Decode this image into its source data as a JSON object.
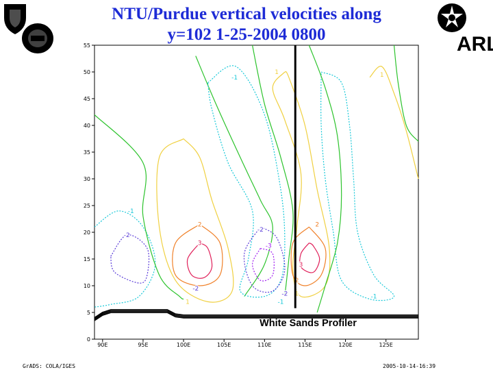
{
  "header": {
    "title_line1": "NTU/Purdue vertical velocities along",
    "title_line2": "y=102 1-25-2004 0800",
    "title_color": "#1d2bd6",
    "logos": [
      "shield-emblem",
      "round-seal",
      "star-seal",
      "ARL"
    ]
  },
  "footer": {
    "left": "GrADS: COLA/IGES",
    "right": "2005-10-14-16:39"
  },
  "chart_data": {
    "type": "contour",
    "xlim": [
      89,
      129
    ],
    "ylim": [
      0,
      55
    ],
    "grid": false,
    "x_ticks": [
      {
        "value": 90,
        "label": "90E"
      },
      {
        "value": 95,
        "label": "95E"
      },
      {
        "value": 100,
        "label": "100E"
      },
      {
        "value": 105,
        "label": "105E"
      },
      {
        "value": 110,
        "label": "110E"
      },
      {
        "value": 115,
        "label": "115E"
      },
      {
        "value": 120,
        "label": "120E"
      },
      {
        "value": 125,
        "label": "125E"
      }
    ],
    "y_ticks": [
      0,
      5,
      10,
      15,
      20,
      25,
      30,
      35,
      40,
      45,
      50,
      55
    ],
    "level_colors": {
      "-3": "#a020f0",
      "-2": "#5a3cd8",
      "-1": "#16c8d8",
      "0": "#2cc32c",
      "1": "#f0d040",
      "2": "#f08028",
      "3": "#e0205a"
    },
    "contours": [
      {
        "level": -1,
        "dashed": true,
        "points": [
          [
            89,
            21
          ],
          [
            92,
            24
          ],
          [
            95,
            21
          ],
          [
            96.5,
            14
          ],
          [
            94.5,
            8
          ],
          [
            91,
            6.5
          ],
          [
            89,
            6
          ]
        ]
      },
      {
        "level": -2,
        "dashed": true,
        "points": [
          [
            91,
            15.5
          ],
          [
            93,
            19.5
          ],
          [
            95.5,
            17
          ],
          [
            95.5,
            12
          ],
          [
            94.5,
            10.5
          ],
          [
            91.5,
            12.5
          ],
          [
            91,
            15.5
          ]
        ]
      },
      {
        "level": 0,
        "dashed": false,
        "points": [
          [
            89,
            42
          ],
          [
            95,
            33
          ],
          [
            95,
            23
          ],
          [
            97,
            12
          ],
          [
            99.5,
            8
          ],
          [
            100,
            7.5
          ]
        ]
      },
      {
        "level": 1,
        "dashed": false,
        "points": [
          [
            100,
            37.5
          ],
          [
            97,
            34
          ],
          [
            97,
            21
          ],
          [
            99,
            11
          ],
          [
            103,
            7
          ],
          [
            106,
            9
          ],
          [
            105.5,
            17
          ],
          [
            103.5,
            26
          ],
          [
            102,
            34
          ],
          [
            100,
            37.5
          ]
        ]
      },
      {
        "level": 2,
        "dashed": false,
        "points": [
          [
            102,
            21.5
          ],
          [
            99,
            18
          ],
          [
            99,
            12
          ],
          [
            102,
            10
          ],
          [
            104.5,
            12
          ],
          [
            104.5,
            18
          ],
          [
            102,
            21.5
          ]
        ]
      },
      {
        "level": 3,
        "dashed": false,
        "points": [
          [
            102,
            18
          ],
          [
            100.5,
            15
          ],
          [
            101,
            12
          ],
          [
            102.5,
            11.5
          ],
          [
            103.5,
            13.5
          ],
          [
            103,
            17
          ],
          [
            102,
            18
          ]
        ]
      },
      {
        "level": 0,
        "dashed": false,
        "points": [
          [
            101.5,
            53
          ],
          [
            104,
            44
          ],
          [
            107,
            34
          ],
          [
            109.5,
            26
          ],
          [
            111,
            21
          ],
          [
            110,
            14
          ],
          [
            107.5,
            8
          ]
        ]
      },
      {
        "level": -1,
        "dashed": true,
        "points": [
          [
            103,
            48
          ],
          [
            106.5,
            51
          ],
          [
            110,
            42
          ],
          [
            112,
            28
          ],
          [
            112.5,
            18
          ],
          [
            112,
            11
          ],
          [
            110,
            8
          ],
          [
            107,
            9
          ],
          [
            108,
            15
          ],
          [
            108.5,
            24
          ],
          [
            105.5,
            33
          ],
          [
            103.5,
            43
          ],
          [
            103,
            48
          ]
        ]
      },
      {
        "level": -2,
        "dashed": true,
        "points": [
          [
            109.5,
            21
          ],
          [
            111.5,
            19
          ],
          [
            112.5,
            13
          ],
          [
            111,
            9
          ],
          [
            108.5,
            10
          ],
          [
            107.5,
            16
          ],
          [
            109.5,
            21
          ]
        ]
      },
      {
        "level": -3,
        "dashed": true,
        "points": [
          [
            109.5,
            17
          ],
          [
            111,
            16
          ],
          [
            111,
            12
          ],
          [
            109.5,
            11
          ],
          [
            108.5,
            14
          ],
          [
            109.5,
            17
          ]
        ]
      },
      {
        "level": 0,
        "dashed": false,
        "points": [
          [
            108.5,
            55
          ],
          [
            110,
            44
          ],
          [
            112,
            34
          ],
          [
            113.5,
            24
          ],
          [
            113,
            15
          ],
          [
            112.5,
            8
          ]
        ]
      },
      {
        "level": 1,
        "dashed": false,
        "points": [
          [
            112.5,
            50
          ],
          [
            111,
            47
          ],
          [
            112.5,
            41
          ],
          [
            114.5,
            31
          ],
          [
            114,
            21
          ],
          [
            113.5,
            13
          ],
          [
            114.5,
            8
          ],
          [
            117.5,
            10
          ],
          [
            118,
            17
          ],
          [
            116.5,
            28
          ],
          [
            115,
            40
          ],
          [
            113,
            49
          ],
          [
            112.5,
            50
          ]
        ]
      },
      {
        "level": 2,
        "dashed": false,
        "points": [
          [
            115.5,
            21
          ],
          [
            113.5,
            18
          ],
          [
            113.5,
            12
          ],
          [
            115,
            10
          ],
          [
            117,
            12
          ],
          [
            117.5,
            17
          ],
          [
            115.5,
            21
          ]
        ]
      },
      {
        "level": 3,
        "dashed": false,
        "points": [
          [
            115.5,
            18
          ],
          [
            114.5,
            16
          ],
          [
            114.5,
            13.5
          ],
          [
            116,
            12.5
          ],
          [
            116.8,
            15
          ],
          [
            116,
            17.5
          ],
          [
            115.5,
            18
          ]
        ]
      },
      {
        "level": -1,
        "dashed": true,
        "points": [
          [
            117,
            50
          ],
          [
            119.5,
            48
          ],
          [
            120.5,
            40
          ],
          [
            121,
            30
          ],
          [
            121.5,
            20
          ],
          [
            123.5,
            12
          ],
          [
            126,
            8
          ],
          [
            123,
            7.5
          ],
          [
            119.5,
            11
          ],
          [
            118.5,
            20
          ],
          [
            117.5,
            30
          ],
          [
            117,
            40
          ],
          [
            117,
            50
          ]
        ]
      },
      {
        "level": 0,
        "dashed": false,
        "points": [
          [
            115.5,
            55
          ],
          [
            117.5,
            47
          ],
          [
            119,
            38
          ],
          [
            119.5,
            27
          ],
          [
            119,
            18
          ],
          [
            117.5,
            10
          ],
          [
            116.5,
            5
          ]
        ]
      },
      {
        "level": 1,
        "dashed": false,
        "points": [
          [
            123,
            49
          ],
          [
            124.5,
            51
          ],
          [
            126,
            46
          ],
          [
            127.5,
            39
          ],
          [
            129,
            30
          ]
        ]
      },
      {
        "level": 0,
        "dashed": false,
        "points": [
          [
            126,
            55
          ],
          [
            126.5,
            48
          ],
          [
            127.5,
            40
          ],
          [
            129,
            37
          ]
        ]
      }
    ],
    "contour_labels": [
      {
        "text": "-1",
        "x": 93.5,
        "y": 24
      },
      {
        "text": "-2",
        "x": 93,
        "y": 19.5
      },
      {
        "text": "2",
        "x": 102,
        "y": 21.5
      },
      {
        "text": "3",
        "x": 102,
        "y": 18
      },
      {
        "text": "-2",
        "x": 101.5,
        "y": 9.5
      },
      {
        "text": "1",
        "x": 100.5,
        "y": 7
      },
      {
        "text": "-1",
        "x": 106.3,
        "y": 49
      },
      {
        "text": "-2",
        "x": 109.5,
        "y": 20.5
      },
      {
        "text": "-3",
        "x": 110.5,
        "y": 17.5
      },
      {
        "text": "-2",
        "x": 112.5,
        "y": 8.5
      },
      {
        "text": "-1",
        "x": 112,
        "y": 7
      },
      {
        "text": "1",
        "x": 111.5,
        "y": 50
      },
      {
        "text": "2",
        "x": 116.5,
        "y": 21.5
      },
      {
        "text": "3",
        "x": 114.5,
        "y": 14
      },
      {
        "text": "2",
        "x": 114,
        "y": 11
      },
      {
        "text": "1",
        "x": 114,
        "y": 8.5
      },
      {
        "text": "1",
        "x": 124.5,
        "y": 49.5
      },
      {
        "text": "-1",
        "x": 123.5,
        "y": 8
      }
    ],
    "terrain": {
      "color": "#000000",
      "points": [
        [
          89,
          4
        ],
        [
          90,
          5
        ],
        [
          91,
          5.5
        ],
        [
          93,
          5.5
        ],
        [
          96,
          5.5
        ],
        [
          98,
          5.5
        ],
        [
          99,
          4.7
        ],
        [
          100,
          4.5
        ],
        [
          129,
          4.5
        ]
      ]
    },
    "profiler": {
      "label": "White Sands Profiler",
      "x": 113.8,
      "y_range": [
        5.8,
        55
      ]
    }
  }
}
